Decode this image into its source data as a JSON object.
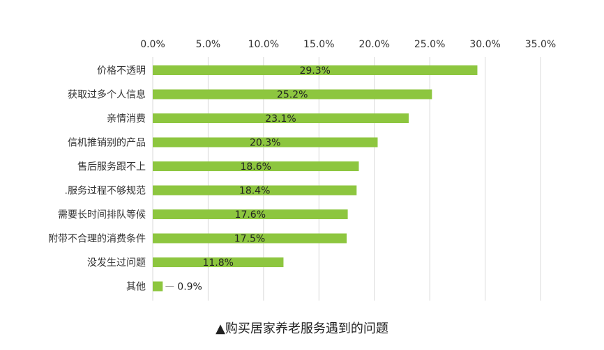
{
  "chart_data": {
    "type": "bar",
    "orientation": "horizontal",
    "categories": [
      "价格不透明",
      "获取过多个人信息",
      "亲情消费",
      "信机推销别的产品",
      "售后服务跟不上",
      ".服务过程不够规范",
      "需要长时间排队等候",
      "附带不合理的消费条件",
      "没发生过问题",
      "其他"
    ],
    "values": [
      29.3,
      25.2,
      23.1,
      20.3,
      18.6,
      18.4,
      17.6,
      17.5,
      11.8,
      0.9
    ],
    "value_labels": [
      "29.3%",
      "25.2%",
      "23.1%",
      "20.3%",
      "18.6%",
      "18.4%",
      "17.6%",
      "17.5%",
      "11.8%",
      "0.9%"
    ],
    "xlim": [
      0,
      35
    ],
    "ticks": [
      "0.0%",
      "5.0%",
      "10.0%",
      "15.0%",
      "20.0%",
      "25.0%",
      "30.0%",
      "35.0%"
    ],
    "x_axis_position": "top",
    "grid": true,
    "bar_color": "#8dc63f",
    "grid_color": "#d9d9d9",
    "caption": "▲购买居家养老服务遇到的问题"
  }
}
